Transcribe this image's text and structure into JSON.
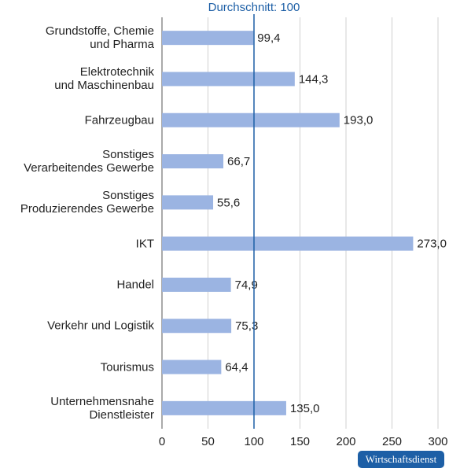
{
  "chart_data": {
    "type": "bar",
    "orientation": "horizontal",
    "categories": [
      "Grundstoffe, Chemie\nund Pharma",
      "Elektrotechnik\nund Maschinenbau",
      "Fahrzeugbau",
      "Sonstiges\nVerarbeitendes Gewerbe",
      "Sonstiges\nProduzierendes Gewerbe",
      "IKT",
      "Handel",
      "Verkehr und Logistik",
      "Tourismus",
      "Unternehmensnahe\nDienstleister"
    ],
    "values": [
      99.4,
      144.3,
      193.0,
      66.7,
      55.6,
      273.0,
      74.9,
      75.3,
      64.4,
      135.0
    ],
    "value_labels": [
      "99,4",
      "144,3",
      "193,0",
      "66,7",
      "55,6",
      "273,0",
      "74,9",
      "75,3",
      "64,4",
      "135,0"
    ],
    "color": "#9bb4e2",
    "xlim": [
      0,
      300
    ],
    "xticks": [
      0,
      50,
      100,
      150,
      200,
      250,
      300
    ],
    "grid": true,
    "reference": {
      "value": 100,
      "label": "Durchschnitt: 100",
      "color": "#1d5fa6"
    },
    "source": "Wirtschaftsdienst"
  }
}
